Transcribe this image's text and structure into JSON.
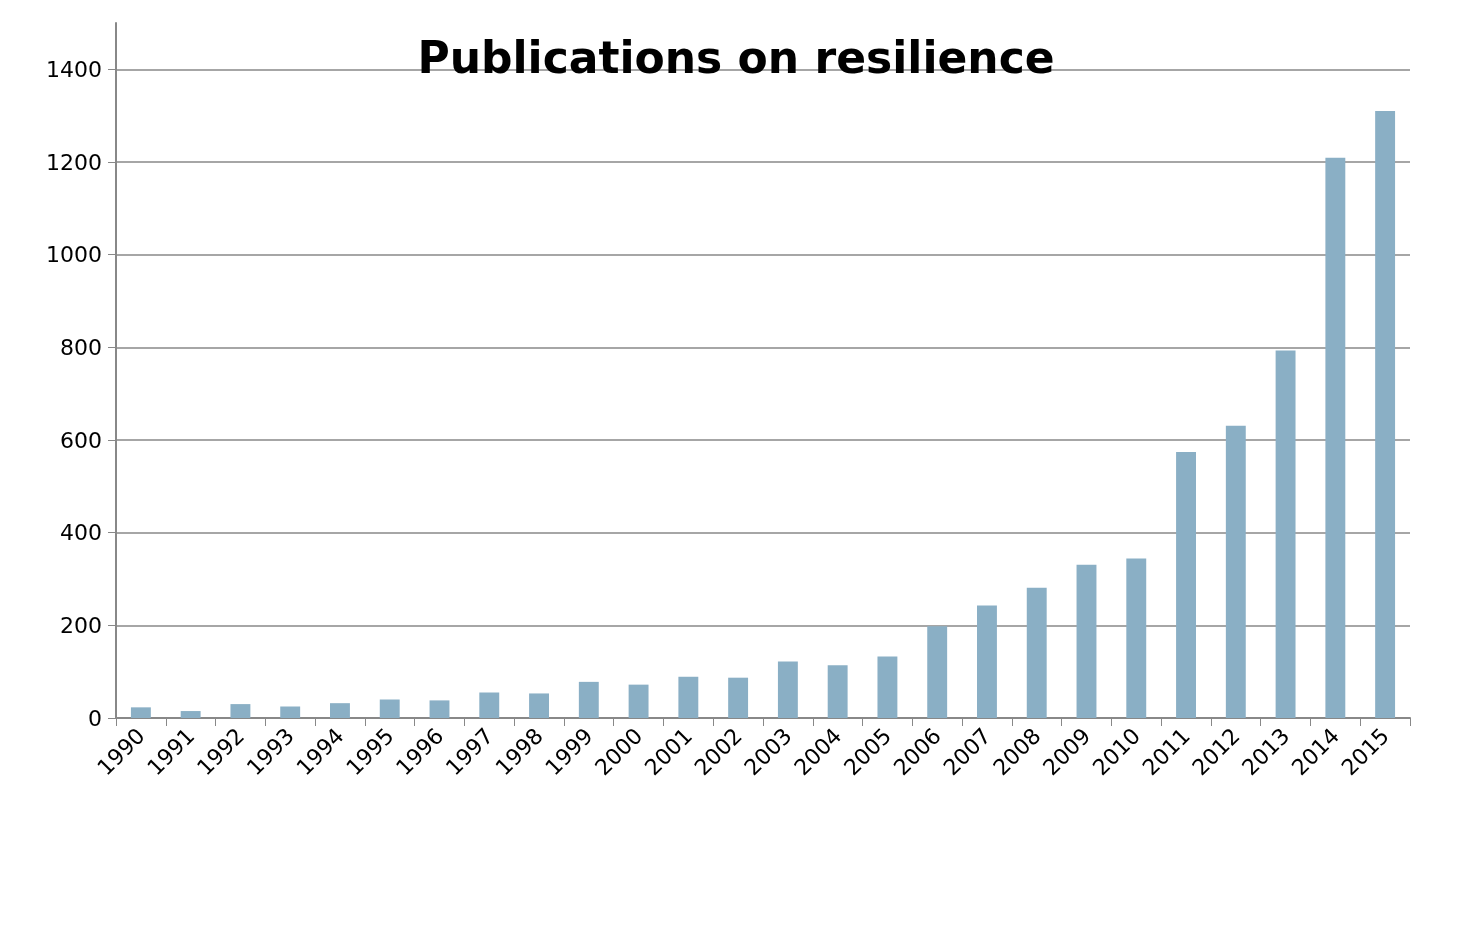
{
  "chart_data": {
    "type": "bar",
    "title": "Publications on resilience",
    "categories": [
      "1990",
      "1991",
      "1992",
      "1993",
      "1994",
      "1995",
      "1996",
      "1997",
      "1998",
      "1999",
      "2000",
      "2001",
      "2002",
      "2003",
      "2004",
      "2005",
      "2006",
      "2007",
      "2008",
      "2009",
      "2010",
      "2011",
      "2012",
      "2013",
      "2014",
      "2015"
    ],
    "values": [
      23,
      15,
      30,
      25,
      32,
      40,
      38,
      55,
      53,
      78,
      72,
      89,
      87,
      122,
      114,
      133,
      198,
      243,
      281,
      331,
      344,
      574,
      631,
      793,
      1209,
      1310
    ],
    "color": "#8aafc5",
    "ylim": [
      0,
      1500
    ],
    "yticks": [
      0,
      200,
      400,
      600,
      800,
      1000,
      1200,
      1400
    ],
    "grid": "y"
  }
}
